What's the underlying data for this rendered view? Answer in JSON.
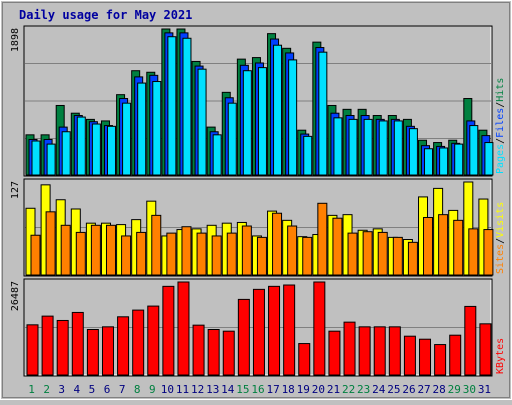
{
  "chart_data": [
    {
      "type": "bar",
      "title": "Daily usage for May 2021",
      "categories": [
        "1",
        "2",
        "3",
        "4",
        "5",
        "6",
        "7",
        "8",
        "9",
        "10",
        "11",
        "12",
        "13",
        "14",
        "15",
        "16",
        "17",
        "18",
        "19",
        "20",
        "21",
        "22",
        "23",
        "24",
        "25",
        "26",
        "27",
        "28",
        "29",
        "30",
        "31"
      ],
      "weekend_days": [
        "1",
        "2",
        "8",
        "9",
        "15",
        "16",
        "22",
        "23",
        "29",
        "30"
      ],
      "ymax_label": "1898",
      "ylabel_parts": [
        "Pages",
        "/",
        "Files",
        "/",
        "Hits"
      ],
      "series": [
        {
          "name": "Hits",
          "color": "#008040",
          "values": [
            520,
            520,
            900,
            800,
            720,
            700,
            1040,
            1350,
            1330,
            1890,
            1890,
            1470,
            620,
            1070,
            1500,
            1520,
            1830,
            1640,
            580,
            1720,
            900,
            850,
            850,
            770,
            770,
            720,
            450,
            420,
            450,
            990,
            580
          ]
        },
        {
          "name": "Files",
          "color": "#0040ff",
          "values": [
            460,
            460,
            620,
            770,
            690,
            640,
            990,
            1270,
            1290,
            1840,
            1840,
            1410,
            560,
            1000,
            1420,
            1450,
            1760,
            1580,
            530,
            1650,
            800,
            770,
            770,
            720,
            720,
            630,
            380,
            370,
            410,
            700,
            510
          ]
        },
        {
          "name": "Pages",
          "color": "#00e0ff",
          "values": [
            440,
            400,
            560,
            750,
            660,
            630,
            930,
            1190,
            1210,
            1790,
            1770,
            1370,
            520,
            930,
            1350,
            1390,
            1680,
            1490,
            500,
            1590,
            740,
            720,
            720,
            700,
            700,
            600,
            340,
            350,
            400,
            640,
            420
          ]
        }
      ]
    },
    {
      "type": "bar",
      "ymax_label": "127",
      "ylabel_parts": [
        "Sites",
        "/",
        "Visits"
      ],
      "series": [
        {
          "name": "Visits",
          "color": "#ffff00",
          "values": [
            94,
            127,
            106,
            93,
            73,
            73,
            71,
            78,
            104,
            55,
            64,
            65,
            70,
            73,
            74,
            55,
            90,
            77,
            54,
            57,
            84,
            85,
            63,
            65,
            53,
            50,
            110,
            122,
            91,
            131,
            107
          ]
        },
        {
          "name": "Sites",
          "color": "#ff8000",
          "values": [
            56,
            89,
            70,
            60,
            70,
            70,
            55,
            60,
            84,
            59,
            68,
            59,
            55,
            59,
            69,
            53,
            87,
            69,
            53,
            101,
            80,
            59,
            61,
            60,
            53,
            46,
            81,
            85,
            77,
            65,
            64
          ]
        }
      ]
    },
    {
      "type": "bar",
      "ymax_label": "26487",
      "ylabel_parts": [
        "KBytes"
      ],
      "series": [
        {
          "name": "KBytes",
          "color": "#ff0000",
          "values": [
            15000,
            17600,
            16300,
            18700,
            13600,
            14400,
            17400,
            19400,
            20600,
            26500,
            27800,
            14900,
            13600,
            13100,
            22600,
            25600,
            26500,
            26900,
            9400,
            27800,
            13100,
            15800,
            14400,
            14400,
            14400,
            11600,
            10700,
            9100,
            11900,
            20500,
            15300
          ]
        }
      ]
    }
  ],
  "colors": {
    "background": "#c0c0c0",
    "plot_bg": "#c0c0c0",
    "title": "#0000a0",
    "weekday_label": "#000080",
    "weekend_label": "#008040",
    "pages": "#00e0ff",
    "files": "#0040ff",
    "hits": "#008040",
    "sites": "#ff8000",
    "visits": "#ffff00",
    "kbytes": "#ff0000"
  }
}
